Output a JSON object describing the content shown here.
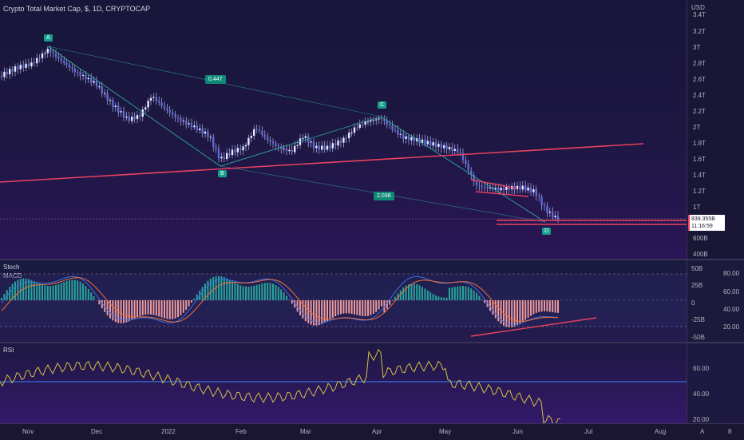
{
  "header": {
    "title": "Crypto Total Market Cap, $, 1D, CRYPTOCAP"
  },
  "price_axis": {
    "currency": "USD",
    "ticks": [
      "3.4T",
      "3.2T",
      "3T",
      "2.8T",
      "2.6T",
      "2.4T",
      "2.2T",
      "2T",
      "1.8T",
      "1.6T",
      "1.4T",
      "1.2T",
      "1T",
      "600B",
      "400B"
    ],
    "last_price": "839.355B",
    "countdown": "11:16:59"
  },
  "pattern": {
    "points": [
      "A",
      "B",
      "C",
      "D"
    ],
    "ratio_xb": "0.447",
    "ratio_bd": "2.038"
  },
  "oscillator": {
    "stoch_label": "Stoch",
    "macd_label": "MACD",
    "left_ticks": [
      "50B",
      "25B",
      "0",
      "-25B",
      "-50B"
    ],
    "right_ticks": [
      "80.00",
      "60.00",
      "40.00",
      "20.00"
    ]
  },
  "rsi": {
    "label": "RSI",
    "ticks": [
      "60.00",
      "40.00",
      "20.00"
    ]
  },
  "time_axis": {
    "labels": [
      "Nov",
      "Dec",
      "2022",
      "Feb",
      "Mar",
      "Apr",
      "May",
      "Jun",
      "Jul",
      "Aug"
    ],
    "mode_a": "A",
    "mode_settings": "8"
  },
  "colors": {
    "up": "#26a69a",
    "down": "#ef5350",
    "candle_body": "#c7ccff",
    "trendline": "#e8425e",
    "pattern_line": "#2bb5a0",
    "rsi_line": "#d4c044",
    "rsi_mid": "#3b6fe0",
    "macd_line": "#3b6fe0",
    "signal_line": "#f0713a"
  }
}
